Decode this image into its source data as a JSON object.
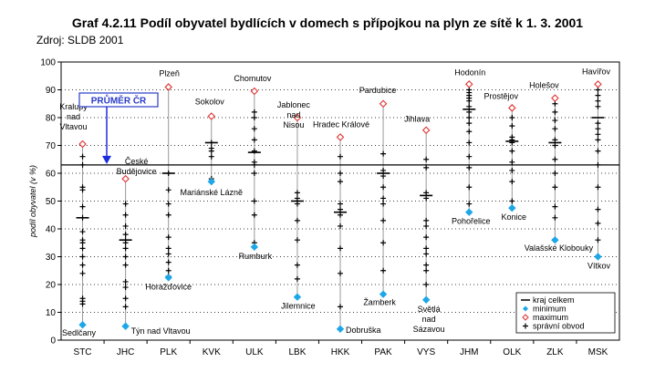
{
  "chart_data": {
    "type": "range-dot",
    "title": "Graf 4.2.11 Podíl obyvatel bydlících v domech s přípojkou na plyn ze sítě k 1. 3. 2001",
    "source": "Zdroj: SLDB 2001",
    "ylabel": "podíl obyvatel (v %)",
    "ylim": [
      0,
      100
    ],
    "yticks": [
      0,
      10,
      20,
      30,
      40,
      50,
      60,
      70,
      80,
      90,
      100
    ],
    "average": {
      "label": "PRŮMĚR ČR",
      "value": 63
    },
    "legend": {
      "items": [
        {
          "symbol": "line",
          "label": "kraj celkem"
        },
        {
          "symbol": "min",
          "label": "minimum"
        },
        {
          "symbol": "max",
          "label": "maximum"
        },
        {
          "symbol": "cross",
          "label": "správní obvod"
        }
      ]
    },
    "regions": [
      {
        "code": "STC",
        "min": 5.5,
        "max": 70.5,
        "kraj": 44,
        "min_label": "Sedlčany",
        "max_label": "Kralupy nad Vltavou",
        "obvody": [
          66,
          63,
          55,
          54,
          48,
          44,
          39,
          36,
          35,
          33,
          30,
          27,
          24,
          15,
          14,
          13
        ]
      },
      {
        "code": "JHC",
        "min": 5,
        "max": 58,
        "kraj": 36,
        "min_label": "Týn nad Vltavou",
        "max_label": "České Budějovice",
        "obvody": [
          49,
          45,
          41,
          38,
          36,
          35,
          33,
          30,
          27,
          21,
          19,
          15,
          12
        ]
      },
      {
        "code": "PLK",
        "min": 22.5,
        "max": 91,
        "kraj": 60,
        "min_label": "Horažďovice",
        "max_label": "Plzeň",
        "obvody": [
          60,
          54,
          49,
          45,
          37,
          33,
          31,
          28,
          25,
          23
        ]
      },
      {
        "code": "KVK",
        "min": 57,
        "max": 80.5,
        "kraj": 71,
        "min_label": "Mariánské Lázně",
        "max_label": "Sokolov",
        "obvody": [
          71,
          69,
          68,
          66,
          58,
          57
        ]
      },
      {
        "code": "ULK",
        "min": 33.5,
        "max": 89.5,
        "kraj": 67.5,
        "min_label": "Rumburk",
        "max_label": "Chomutov",
        "obvody": [
          82,
          80,
          76,
          72,
          68,
          64,
          63,
          60,
          50,
          45,
          35
        ]
      },
      {
        "code": "LBK",
        "min": 15.5,
        "max": 80,
        "kraj": 50,
        "min_label": "Jilemnice",
        "max_label": "Jablonec nad Nisou",
        "obvody": [
          53,
          51,
          50,
          49,
          43,
          36,
          27,
          22
        ]
      },
      {
        "code": "HKK",
        "min": 4,
        "max": 73,
        "kraj": 46,
        "min_label": "Dobruška",
        "max_label": "Hradec Králové",
        "obvody": [
          66,
          60,
          57,
          49,
          47,
          46,
          45,
          41,
          33,
          24,
          12
        ]
      },
      {
        "code": "PAK",
        "min": 16.5,
        "max": 85,
        "kraj": 60,
        "min_label": "Žamberk",
        "max_label": "Pardubice",
        "obvody": [
          67,
          61,
          59,
          55,
          51,
          49,
          43,
          35,
          25
        ]
      },
      {
        "code": "VYS",
        "min": 14.5,
        "max": 75.5,
        "kraj": 52,
        "min_label": "Světlá nad Sázavou",
        "max_label": "Jihlava",
        "obvody": [
          65,
          62,
          53,
          51,
          43,
          41,
          37,
          33,
          31,
          27,
          25,
          20
        ]
      },
      {
        "code": "JHM",
        "min": 46,
        "max": 92,
        "kraj": 83,
        "min_label": "Pohořelice",
        "max_label": "Hodonín",
        "obvody": [
          90,
          89,
          88,
          87,
          86,
          84,
          82,
          80,
          78,
          75,
          71,
          66,
          62,
          55,
          49
        ]
      },
      {
        "code": "OLK",
        "min": 47.5,
        "max": 83.5,
        "kraj": 71.5,
        "min_label": "Konice",
        "max_label": "Prostějov",
        "obvody": [
          80,
          77,
          73,
          72,
          71,
          68,
          64,
          61,
          57,
          50
        ]
      },
      {
        "code": "ZLK",
        "min": 36,
        "max": 87,
        "kraj": 71,
        "min_label": "Valašské Klobouky",
        "max_label": "Holešov",
        "obvody": [
          85,
          82,
          79,
          76,
          72,
          70,
          65,
          60,
          55,
          48,
          44
        ]
      },
      {
        "code": "MSK",
        "min": 30,
        "max": 92,
        "kraj": 80,
        "min_label": "Vítkov",
        "max_label": "Havířov",
        "obvody": [
          90,
          88,
          86,
          84,
          78,
          76,
          74,
          72,
          68,
          63,
          55,
          47,
          42,
          36
        ]
      }
    ]
  }
}
